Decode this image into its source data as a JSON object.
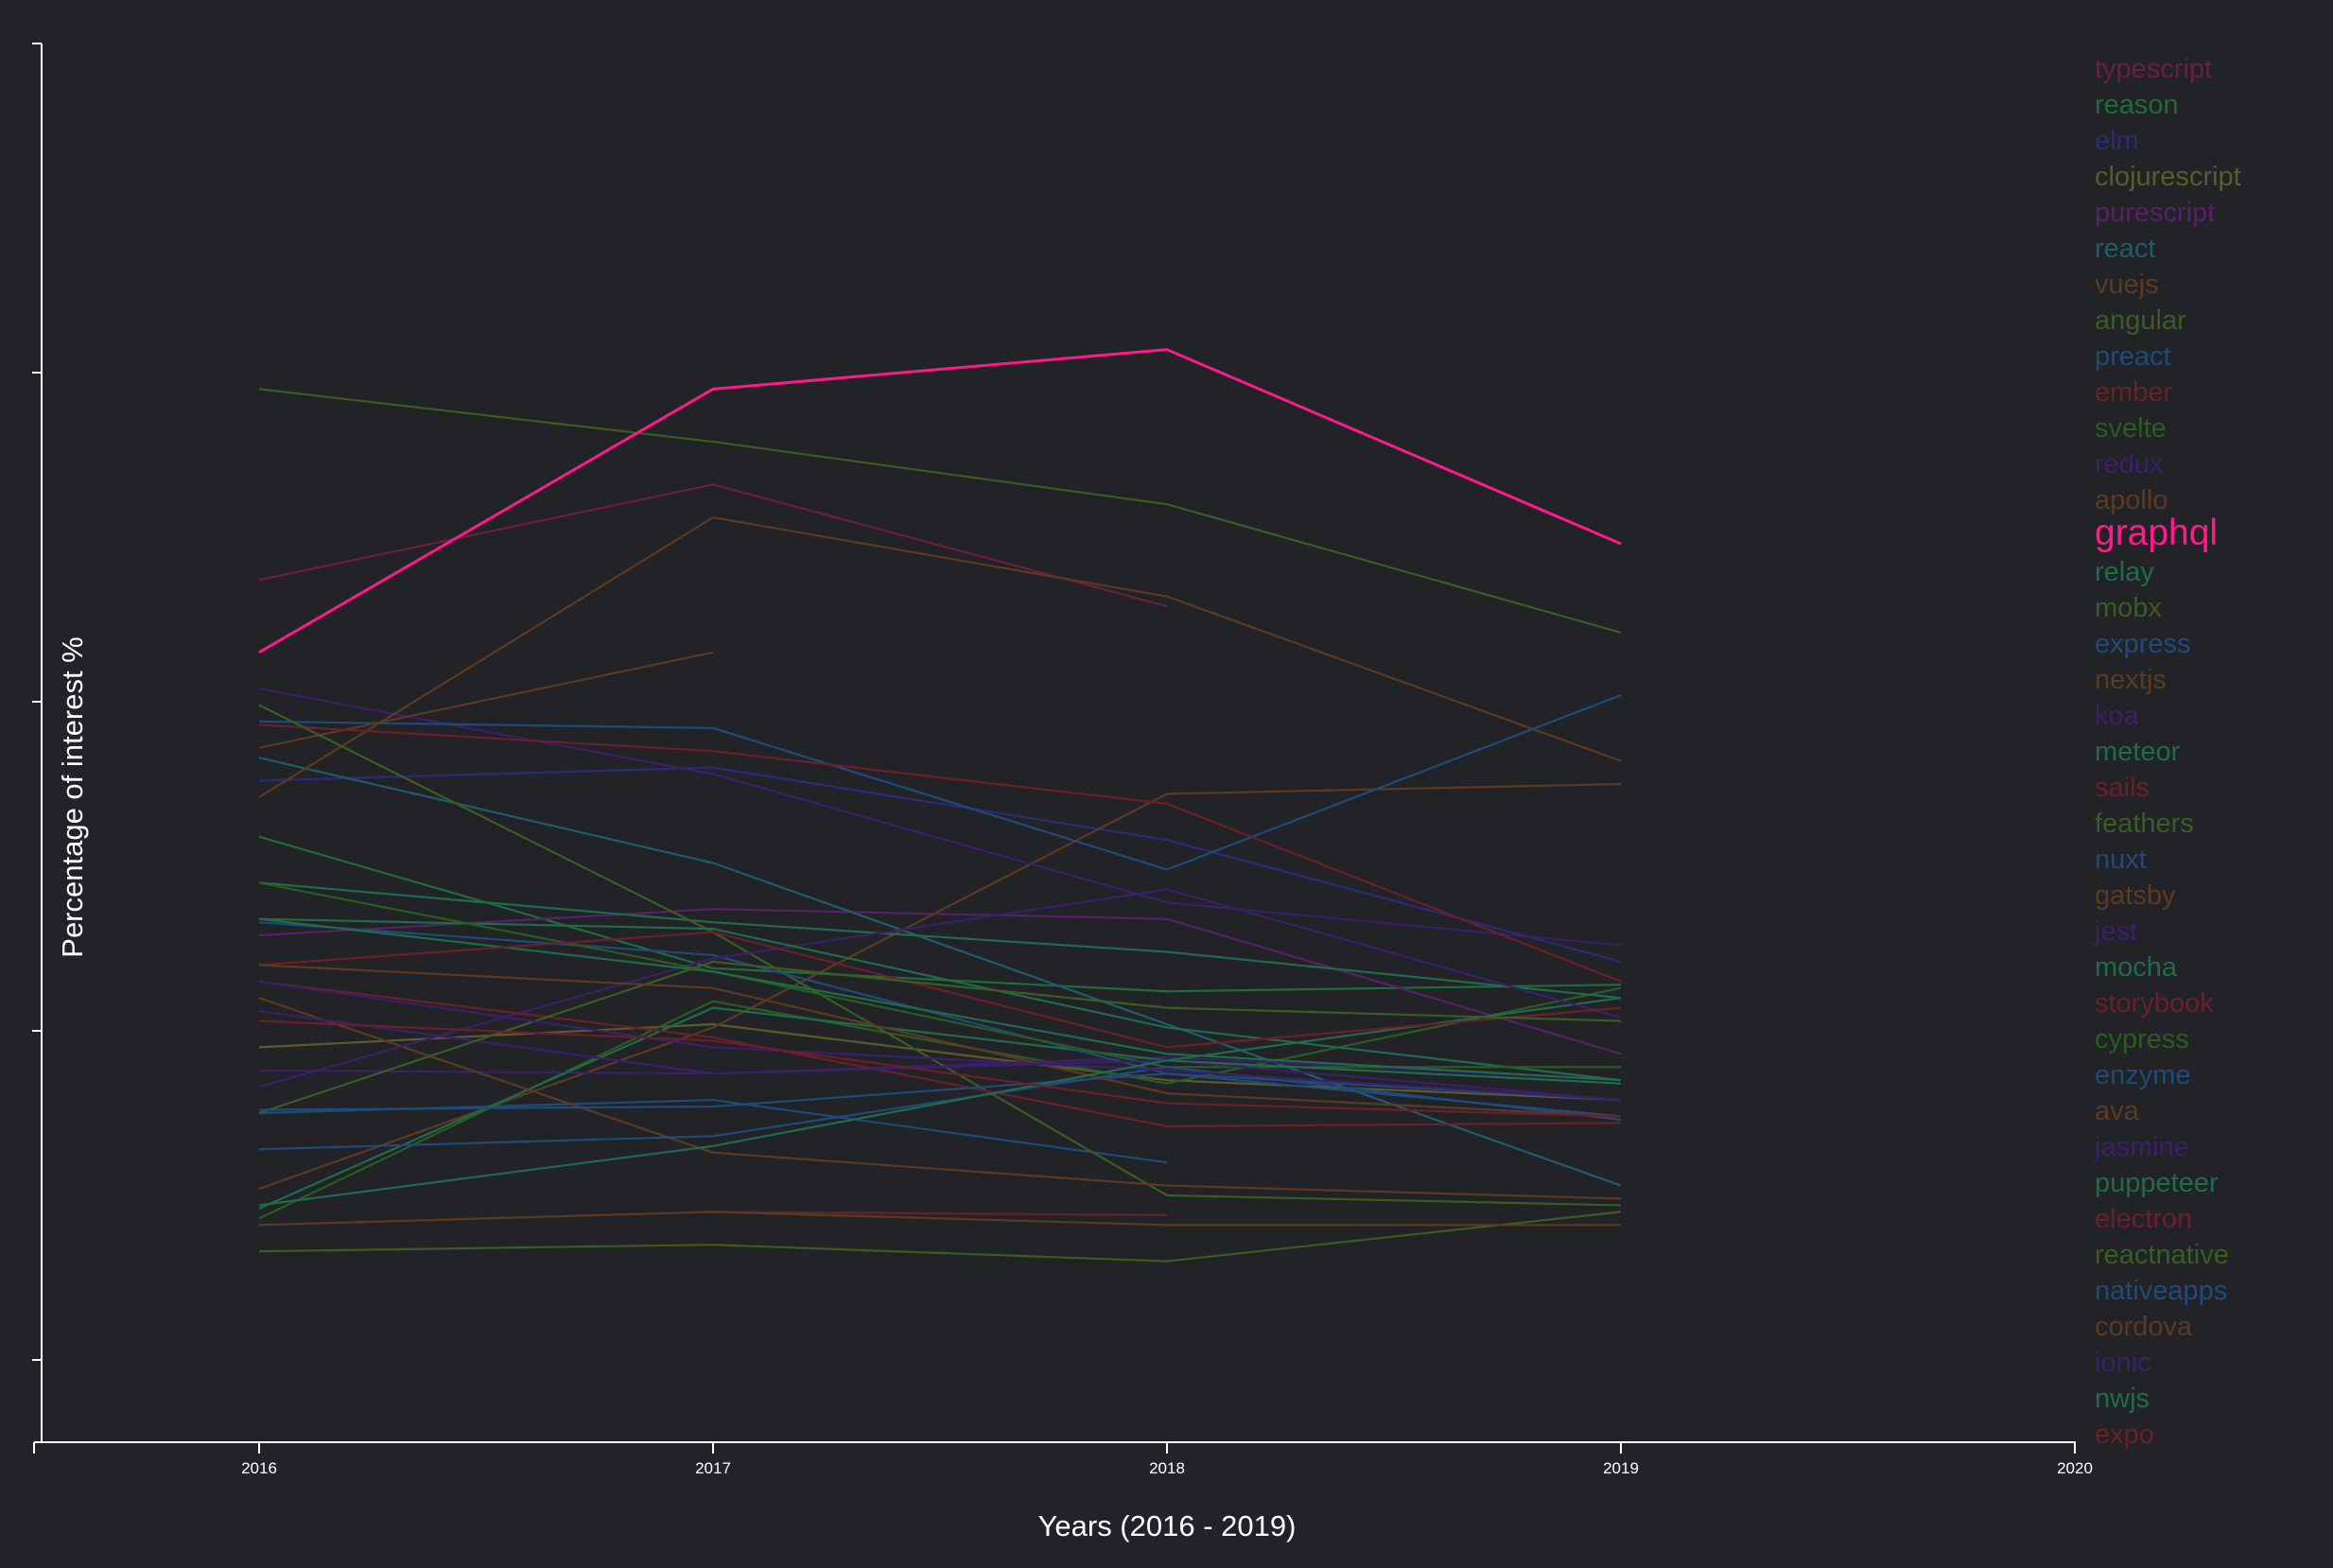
{
  "chart_data": {
    "type": "line",
    "xlabel": "Years (2016 - 2019)",
    "ylabel": "Percentage of interest %",
    "x_ticks": [
      "2016",
      "2017",
      "2018",
      "2019",
      "2020"
    ],
    "xlim": [
      2015.5,
      2020
    ],
    "ylim": [
      0,
      425
    ],
    "y_ticks": [
      25,
      125,
      225,
      325,
      425
    ],
    "grid": false,
    "legend_position": "right",
    "highlight": "graphql",
    "highlight_color": "#ff1a8c",
    "series": [
      {
        "name": "typescript",
        "color": "#6b1f3c",
        "values": [
          262,
          291,
          254,
          null
        ]
      },
      {
        "name": "reason",
        "color": "#1f6b3c",
        "values": [
          184,
          144,
          137,
          139
        ]
      },
      {
        "name": "elm",
        "color": "#2a2a7a",
        "values": [
          201,
          205,
          183,
          146
        ]
      },
      {
        "name": "clojurescript",
        "color": "#5c5a2a",
        "values": [
          120,
          127,
          110,
          104
        ]
      },
      {
        "name": "purescript",
        "color": "#5a1f6b",
        "values": [
          154,
          162,
          159,
          118
        ]
      },
      {
        "name": "react",
        "color": "#1f5c6b",
        "values": [
          208,
          176,
          127,
          78
        ]
      },
      {
        "name": "vuejs",
        "color": "#5c3a22",
        "values": [
          77,
          126,
          197,
          200
        ]
      },
      {
        "name": "angular",
        "color": "#3b5c22",
        "values": [
          320,
          304,
          285,
          246
        ]
      },
      {
        "name": "preact",
        "color": "#1f4a7a",
        "values": [
          100,
          104,
          85,
          null
        ]
      },
      {
        "name": "ember",
        "color": "#6b1f2a",
        "values": [
          66,
          70,
          69,
          null
        ]
      },
      {
        "name": "svelte",
        "color": "#2a5c22",
        "values": [
          68,
          134,
          109,
          138
        ]
      },
      {
        "name": "redux",
        "color": "#3a1f6b",
        "values": [
          229,
          203,
          164,
          151
        ]
      },
      {
        "name": "apollo",
        "color": "#5c3a22",
        "values": [
          196,
          281,
          257,
          207
        ]
      },
      {
        "name": "graphql",
        "color": "#ff1a8c",
        "values": [
          240,
          320,
          332,
          273
        ]
      },
      {
        "name": "relay",
        "color": "#1f6b4a",
        "values": [
          170,
          158,
          149,
          135
        ]
      },
      {
        "name": "mobx",
        "color": "#3b5c22",
        "values": [
          58,
          60,
          55,
          70
        ]
      },
      {
        "name": "express",
        "color": "#1f4a7a",
        "values": [
          219,
          217,
          174,
          227
        ]
      },
      {
        "name": "nextjs",
        "color": "#5c3a22",
        "values": [
          211,
          240,
          null,
          null
        ]
      },
      {
        "name": "koa",
        "color": "#3a1f6b",
        "values": [
          113,
          112,
          117,
          110
        ]
      },
      {
        "name": "meteor",
        "color": "#1f6b4a",
        "values": [
          71,
          132,
          116,
          135
        ]
      },
      {
        "name": "sails",
        "color": "#6b1f2a",
        "values": [
          218,
          210,
          194,
          140
        ]
      },
      {
        "name": "feathers",
        "color": "#3b5c22",
        "values": [
          224,
          155,
          75,
          72
        ]
      },
      {
        "name": "nuxt",
        "color": "#1f4a7a",
        "values": [
          158,
          148,
          112,
          104
        ]
      },
      {
        "name": "gatsby",
        "color": "#5c3a22",
        "values": [
          135,
          88,
          78,
          74
        ]
      },
      {
        "name": "jest",
        "color": "#3a1f6b",
        "values": [
          108,
          147,
          168,
          129
        ]
      },
      {
        "name": "mocha",
        "color": "#1f6b4a",
        "values": [
          159,
          156,
          126,
          110
        ]
      },
      {
        "name": "storybook",
        "color": "#6b1f2a",
        "values": [
          140,
          123,
          96,
          97
        ]
      },
      {
        "name": "cypress",
        "color": "#2a5c22",
        "values": [
          170,
          143,
          114,
          114
        ]
      },
      {
        "name": "enzyme",
        "color": "#1f4a7a",
        "values": [
          89,
          93,
          114,
          98
        ]
      },
      {
        "name": "ava",
        "color": "#5c3a22",
        "values": [
          66,
          70,
          66,
          66
        ]
      },
      {
        "name": "jasmine",
        "color": "#3a1f6b",
        "values": [
          131,
          112,
          116,
          104
        ]
      },
      {
        "name": "puppeteer",
        "color": "#1f6b4a",
        "values": [
          159,
          143,
          118,
          110
        ]
      },
      {
        "name": "electron",
        "color": "#6b1f2a",
        "values": [
          145,
          155,
          120,
          132
        ]
      },
      {
        "name": "reactnative",
        "color": "#3b5c22",
        "values": [
          100,
          146,
          132,
          128
        ]
      },
      {
        "name": "nativeapps",
        "color": "#1f4a7a",
        "values": [
          101,
          102,
          112,
          99
        ]
      },
      {
        "name": "cordova",
        "color": "#5c3a22",
        "values": [
          145,
          138,
          106,
          99
        ]
      },
      {
        "name": "ionic",
        "color": "#3a1f6b",
        "values": [
          140,
          120,
          113,
          104
        ]
      },
      {
        "name": "nwjs",
        "color": "#1f6b4a",
        "values": [
          72,
          90,
          116,
          109
        ]
      },
      {
        "name": "expo",
        "color": "#6b1f2a",
        "values": [
          128,
          122,
          103,
          99
        ]
      }
    ]
  }
}
